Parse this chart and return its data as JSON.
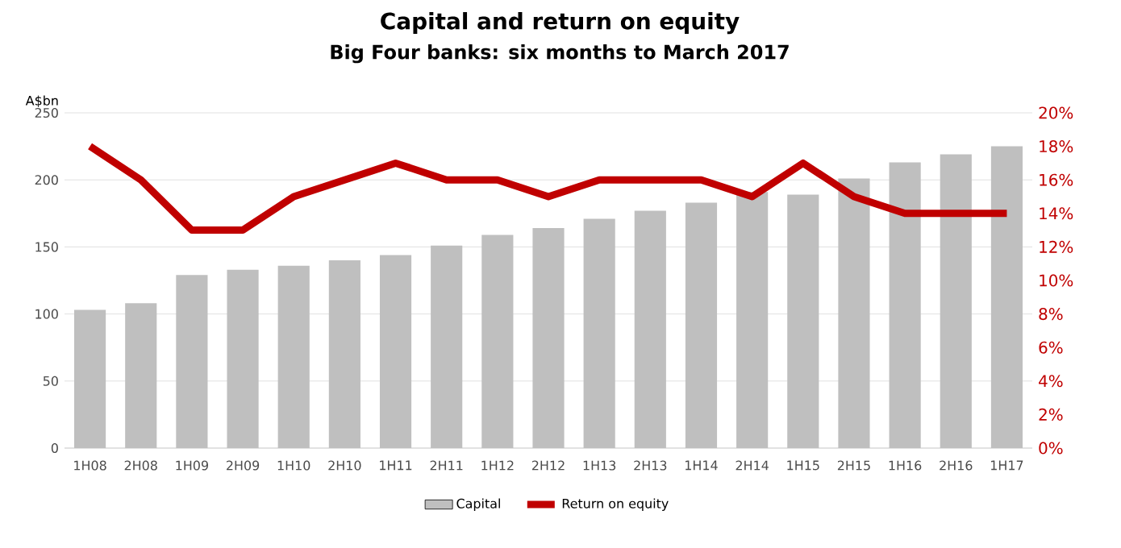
{
  "chart_data": {
    "type": "bar",
    "title": "Capital and return on equity",
    "subtitle": "Big Four banks: six months to March 2017",
    "ylabel": "A$bn",
    "categories": [
      "1H08",
      "2H08",
      "1H09",
      "2H09",
      "1H10",
      "2H10",
      "1H11",
      "2H11",
      "1H12",
      "2H12",
      "1H13",
      "2H13",
      "1H14",
      "2H14",
      "1H15",
      "2H15",
      "1H16",
      "2H16",
      "1H17"
    ],
    "series": [
      {
        "name": "Capital",
        "color": "#bfbfbf",
        "values": [
          103,
          108,
          129,
          133,
          136,
          140,
          144,
          151,
          159,
          164,
          171,
          177,
          183,
          191,
          189,
          201,
          213,
          219,
          225
        ]
      },
      {
        "name": "Return on  equity",
        "type": "line",
        "axis": "y2",
        "color": "#c00000",
        "values": [
          18,
          16,
          13,
          13,
          15,
          16,
          17,
          16,
          16,
          15,
          16,
          16,
          16,
          15,
          17,
          15,
          14,
          14,
          14
        ]
      }
    ],
    "ylim": [
      0,
      250
    ],
    "yticks": [
      0,
      50,
      100,
      150,
      200,
      250
    ],
    "y2lim": [
      0,
      20
    ],
    "y2ticks": [
      {
        "value": 0,
        "label": "0%"
      },
      {
        "value": 2,
        "label": "2%"
      },
      {
        "value": 4,
        "label": "4%"
      },
      {
        "value": 6,
        "label": "6%"
      },
      {
        "value": 8,
        "label": "8%"
      },
      {
        "value": 10,
        "label": "10%"
      },
      {
        "value": 12,
        "label": "12%"
      },
      {
        "value": 14,
        "label": "14%"
      },
      {
        "value": 16,
        "label": "16%"
      },
      {
        "value": 18,
        "label": "18%"
      },
      {
        "value": 20,
        "label": "20%"
      }
    ],
    "grid": "y",
    "legend": "bottom",
    "marker": "none",
    "line_style": "solid"
  }
}
